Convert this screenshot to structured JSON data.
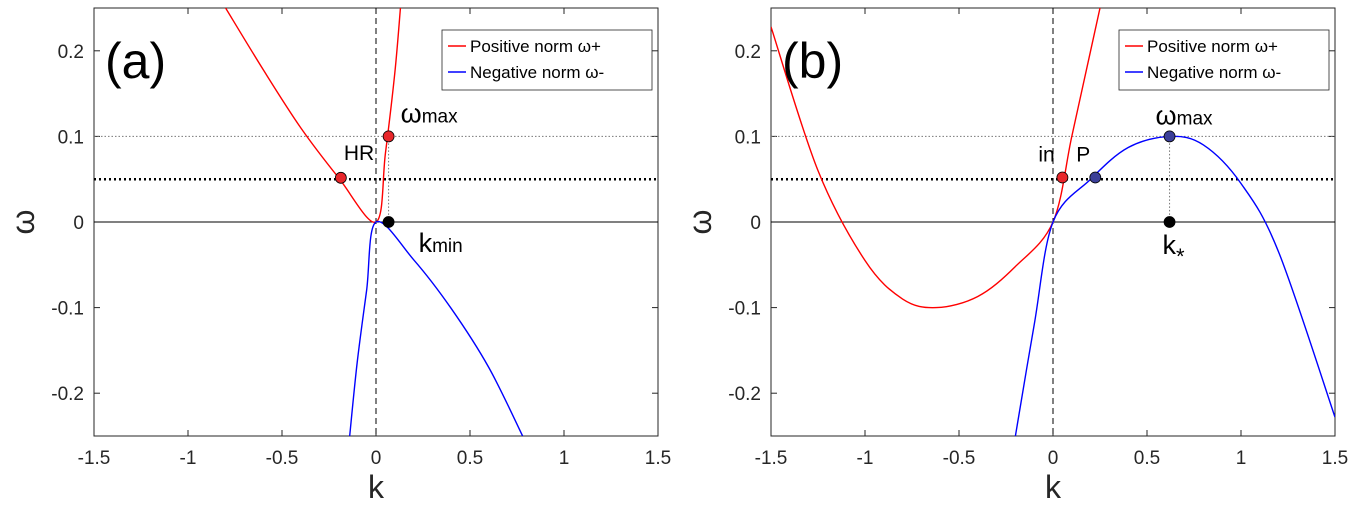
{
  "chart_data": [
    {
      "type": "line",
      "panel_label": "(a)",
      "xlabel": "k",
      "ylabel": "ω",
      "xlim": [
        -1.5,
        1.5
      ],
      "ylim": [
        -0.25,
        0.25
      ],
      "xticks": [
        -1.5,
        -1,
        -0.5,
        0,
        0.5,
        1,
        1.5
      ],
      "xtick_labels": [
        "-1.5",
        "-1",
        "-0.5",
        "0",
        "0.5",
        "1",
        "1.5"
      ],
      "yticks": [
        -0.2,
        -0.1,
        0,
        0.1,
        0.2
      ],
      "ytick_labels": [
        "-0.2",
        "-0.1",
        "0",
        "0.1",
        "0.2"
      ],
      "legend_position": "top-right",
      "series": [
        {
          "name": "Positive norm ω+",
          "color": "#ff0000",
          "x": [
            -0.8,
            -0.6,
            -0.4,
            -0.2,
            0,
            0.05,
            0.1,
            0.13
          ],
          "y": [
            0.25,
            0.178,
            0.11,
            0.052,
            0,
            0.08,
            0.174,
            0.25
          ]
        },
        {
          "name": "Negative norm ω-",
          "color": "#0000ff",
          "x": [
            -0.14,
            -0.1,
            -0.05,
            0,
            0.2,
            0.4,
            0.6,
            0.78
          ],
          "y": [
            -0.25,
            -0.164,
            -0.08,
            0,
            -0.044,
            -0.101,
            -0.17,
            -0.25
          ]
        }
      ],
      "hlines": [
        {
          "y": 0.1,
          "style": "dotted-thin"
        },
        {
          "y": 0.05,
          "style": "dotted-thick"
        },
        {
          "y": 0,
          "style": "solid"
        }
      ],
      "vlines": [
        {
          "x": 0,
          "style": "dashed"
        }
      ],
      "points": [
        {
          "x": -0.187,
          "y": 0.0516,
          "color": "#e8262b",
          "label": "HR"
        },
        {
          "x": 0.067,
          "y": 0.1,
          "color": "#e8262b",
          "label": "ωmax"
        },
        {
          "x": 0.067,
          "y": 0,
          "color": "#000000",
          "label": "kmin"
        }
      ]
    },
    {
      "type": "line",
      "panel_label": "(b)",
      "xlabel": "k",
      "ylabel": "ω",
      "xlim": [
        -1.5,
        1.5
      ],
      "ylim": [
        -0.25,
        0.25
      ],
      "xticks": [
        -1.5,
        -1,
        -0.5,
        0,
        0.5,
        1,
        1.5
      ],
      "xtick_labels": [
        "-1.5",
        "-1",
        "-0.5",
        "0",
        "0.5",
        "1",
        "1.5"
      ],
      "yticks": [
        -0.2,
        -0.1,
        0,
        0.1,
        0.2
      ],
      "ytick_labels": [
        "-0.2",
        "-0.1",
        "0",
        "0.1",
        "0.2"
      ],
      "legend_position": "top-right",
      "series": [
        {
          "name": "Positive norm ω+",
          "color": "#ff0000",
          "x": [
            -1.5,
            -1.25,
            -1,
            -0.8,
            -0.62,
            -0.4,
            -0.2,
            0,
            0.1,
            0.2,
            0.25
          ],
          "y": [
            0.228,
            0.06,
            -0.045,
            -0.09,
            -0.1,
            -0.087,
            -0.052,
            0,
            0.1,
            0.2,
            0.25
          ]
        },
        {
          "name": "Negative norm ω-",
          "color": "#0000ff",
          "x": [
            -0.2,
            -0.1,
            0,
            0.2,
            0.4,
            0.62,
            0.8,
            1,
            1.2,
            1.5
          ],
          "y": [
            -0.25,
            -0.12,
            0,
            0.05,
            0.087,
            0.1,
            0.09,
            0.045,
            -0.035,
            -0.228
          ]
        }
      ],
      "hlines": [
        {
          "y": 0.1,
          "style": "dotted-thin"
        },
        {
          "y": 0.05,
          "style": "dotted-thick"
        },
        {
          "y": 0,
          "style": "solid"
        }
      ],
      "vlines": [
        {
          "x": 0,
          "style": "dashed"
        }
      ],
      "points": [
        {
          "x": 0.05,
          "y": 0.052,
          "color": "#e8262b",
          "label": "in"
        },
        {
          "x": 0.225,
          "y": 0.052,
          "color": "#3b3f98",
          "label": "P"
        },
        {
          "x": 0.62,
          "y": 0.1,
          "color": "#3b3f98",
          "label": "ωmax"
        },
        {
          "x": 0.62,
          "y": 0,
          "color": "#000000",
          "label": "k*"
        }
      ]
    }
  ]
}
